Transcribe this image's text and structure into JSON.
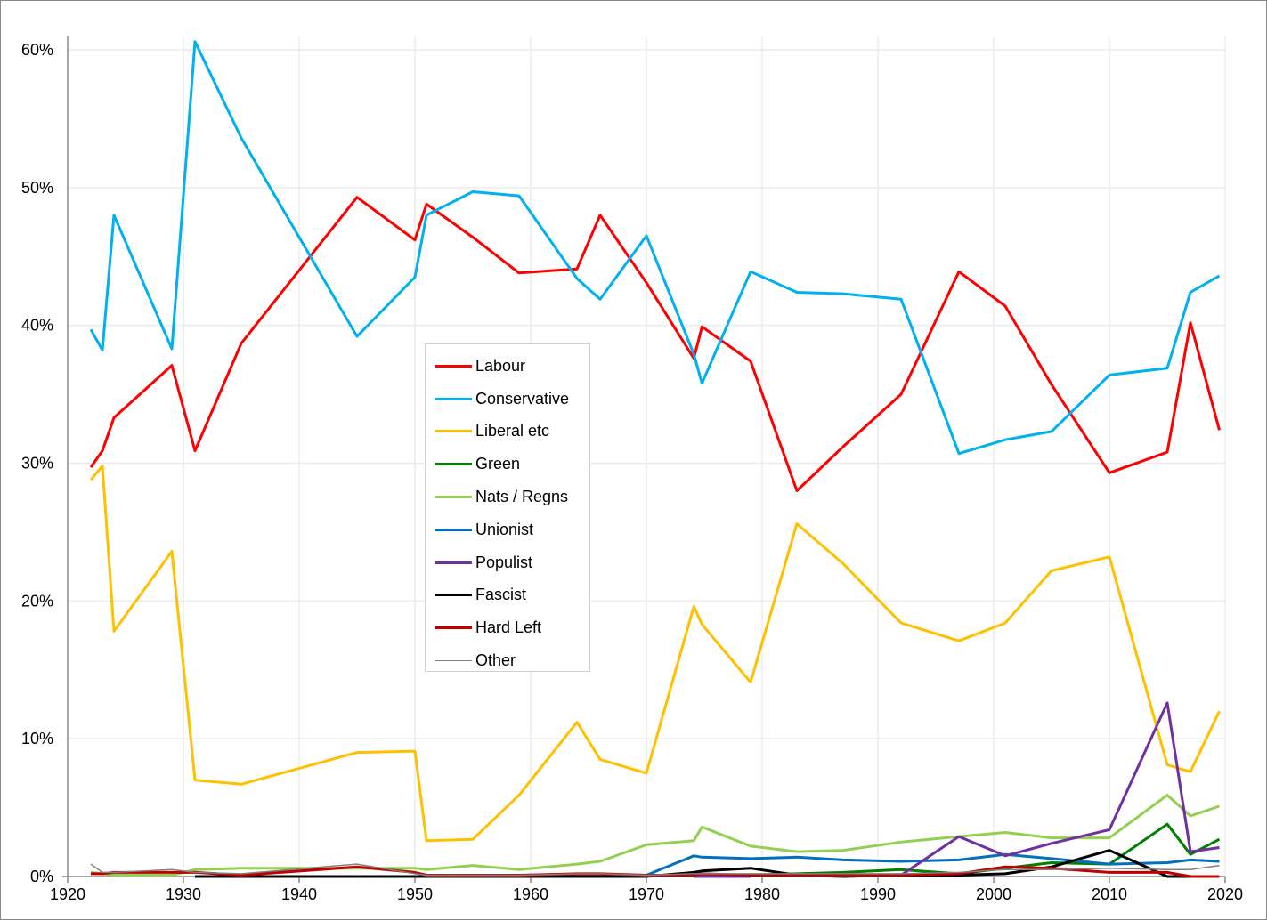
{
  "chart_data": {
    "type": "line",
    "title": "",
    "xlabel": "",
    "ylabel": "",
    "xlim": [
      1920,
      2020
    ],
    "ylim": [
      0,
      60
    ],
    "x_ticks": [
      "1920",
      "1930",
      "1940",
      "1950",
      "1960",
      "1970",
      "1980",
      "1990",
      "2000",
      "2010",
      "2020"
    ],
    "y_ticks": [
      "0%",
      "10%",
      "20%",
      "30%",
      "40%",
      "50%",
      "60%"
    ],
    "grid": true,
    "legend_position": "center-left",
    "x": [
      1922,
      1923,
      1924,
      1929,
      1931,
      1935,
      1945,
      1950,
      1951,
      1955,
      1959,
      1964,
      1966,
      1970,
      1974.1,
      1974.8,
      1979,
      1983,
      1987,
      1992,
      1997,
      2001,
      2005,
      2010,
      2015,
      2017,
      2019.5
    ],
    "series": [
      {
        "name": "Labour",
        "color": "#ff0000",
        "width": 3,
        "values": [
          29.7,
          30.9,
          33.3,
          37.1,
          30.9,
          38.7,
          49.3,
          46.2,
          48.8,
          46.4,
          43.8,
          44.1,
          48.0,
          43.1,
          37.6,
          39.9,
          37.4,
          28.0,
          31.2,
          35.0,
          43.9,
          41.4,
          35.7,
          29.3,
          30.8,
          40.2,
          32.4
        ]
      },
      {
        "name": "Conservative",
        "color": "#00b0f0",
        "width": 3,
        "values": [
          39.7,
          38.2,
          48.0,
          38.3,
          60.6,
          53.6,
          39.2,
          43.5,
          48.0,
          49.7,
          49.4,
          43.4,
          41.9,
          46.5,
          37.9,
          35.8,
          43.9,
          42.4,
          42.3,
          41.9,
          30.7,
          31.7,
          32.3,
          36.4,
          36.9,
          42.4,
          43.6
        ]
      },
      {
        "name": "Liberal etc",
        "color": "#ffc000",
        "width": 3,
        "values": [
          28.8,
          29.8,
          17.8,
          23.6,
          7.0,
          6.7,
          9.0,
          9.1,
          2.6,
          2.7,
          5.9,
          11.2,
          8.5,
          7.5,
          19.6,
          18.3,
          14.1,
          25.6,
          22.7,
          18.4,
          17.1,
          18.4,
          22.2,
          23.2,
          8.1,
          7.6,
          12.0
        ]
      },
      {
        "name": "Green",
        "color": "#008000",
        "width": 3,
        "values": [
          null,
          null,
          null,
          null,
          null,
          null,
          null,
          null,
          null,
          null,
          null,
          null,
          null,
          null,
          null,
          null,
          0.1,
          0.2,
          0.3,
          0.5,
          0.2,
          0.6,
          1.0,
          0.9,
          3.8,
          1.6,
          2.7
        ]
      },
      {
        "name": "Nats / Regns",
        "color": "#92d050",
        "width": 3,
        "values": [
          0.3,
          0.2,
          0.1,
          0.1,
          0.5,
          0.6,
          0.6,
          0.6,
          0.5,
          0.8,
          0.5,
          0.9,
          1.1,
          2.3,
          2.6,
          3.6,
          2.2,
          1.8,
          1.9,
          2.5,
          2.9,
          3.2,
          2.8,
          2.8,
          5.9,
          4.4,
          5.1
        ]
      },
      {
        "name": "Unionist",
        "color": "#0070c0",
        "width": 3,
        "values": [
          null,
          null,
          null,
          null,
          0.0,
          0.0,
          0.0,
          null,
          null,
          null,
          null,
          null,
          null,
          0.1,
          1.5,
          1.4,
          1.3,
          1.4,
          1.2,
          1.1,
          1.2,
          1.6,
          1.3,
          0.9,
          1.0,
          1.2,
          1.1
        ]
      },
      {
        "name": "Populist",
        "color": "#7030a0",
        "width": 3,
        "values": [
          null,
          null,
          null,
          null,
          null,
          null,
          null,
          null,
          null,
          null,
          null,
          null,
          null,
          null,
          0.0,
          0.0,
          0.0,
          null,
          null,
          0.1,
          2.9,
          1.5,
          2.4,
          3.4,
          12.6,
          1.8,
          2.1
        ]
      },
      {
        "name": "Fascist",
        "color": "#000000",
        "width": 3,
        "values": [
          null,
          null,
          null,
          null,
          0.0,
          0.0,
          0.0,
          0.0,
          0.0,
          0.0,
          0.0,
          0.0,
          0.0,
          0.0,
          0.3,
          0.4,
          0.6,
          0.1,
          0.0,
          0.1,
          0.1,
          0.2,
          0.7,
          1.9,
          0.0,
          0.0,
          0.0
        ]
      },
      {
        "name": "Hard Left",
        "color": "#c00000",
        "width": 3,
        "values": [
          0.2,
          0.2,
          0.3,
          0.3,
          0.3,
          0.1,
          0.7,
          0.3,
          0.1,
          0.1,
          0.1,
          0.2,
          0.2,
          0.1,
          0.1,
          0.2,
          0.1,
          0.1,
          0.1,
          0.1,
          0.2,
          0.7,
          0.6,
          0.3,
          0.3,
          0.0,
          0.0
        ]
      },
      {
        "name": "Other",
        "color": "#808080",
        "width": 1.5,
        "values": [
          0.9,
          0.3,
          0.3,
          0.5,
          0.3,
          0.2,
          0.9,
          0.2,
          0.1,
          0.1,
          0.1,
          0.2,
          0.2,
          0.1,
          0.2,
          0.2,
          0.2,
          0.2,
          0.2,
          0.2,
          0.3,
          0.5,
          0.5,
          0.6,
          0.5,
          0.5,
          0.8
        ]
      }
    ]
  }
}
